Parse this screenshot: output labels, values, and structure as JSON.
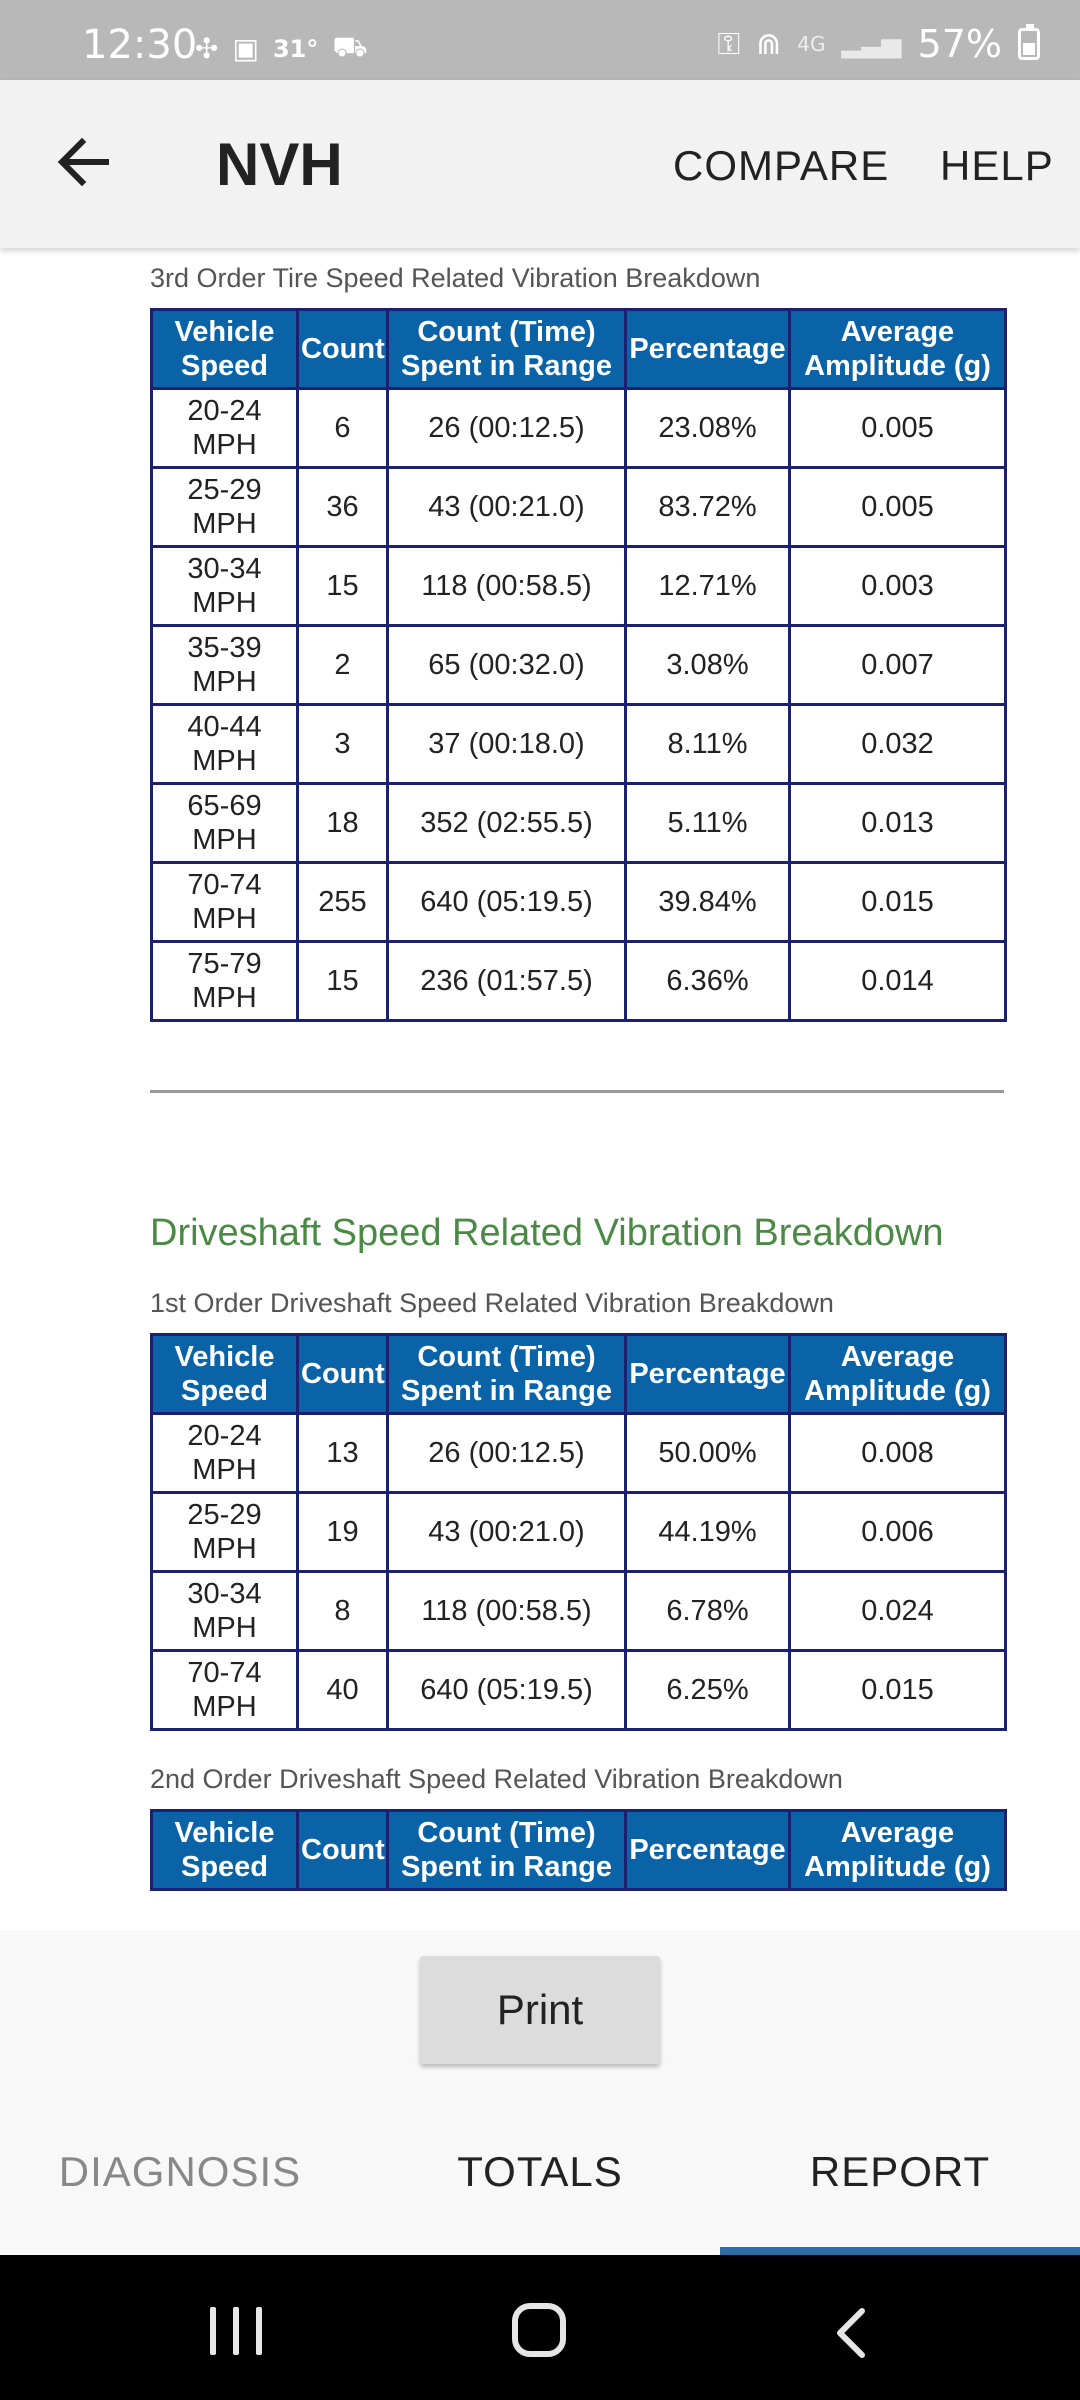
{
  "status_bar": {
    "time": "12:30",
    "temperature": "31°",
    "network": "4G",
    "battery": "57%"
  },
  "app_bar": {
    "title": "NVH",
    "compare_label": "COMPARE",
    "help_label": "HELP"
  },
  "columns": [
    "Vehicle Speed",
    "Count",
    "Count (Time) Spent in Range",
    "Percentage",
    "Average Amplitude (g)"
  ],
  "tire_3rd": {
    "caption": "3rd Order Tire Speed Related Vibration Breakdown",
    "rows": [
      [
        "20-24 MPH",
        "6",
        "26 (00:12.5)",
        "23.08%",
        "0.005"
      ],
      [
        "25-29 MPH",
        "36",
        "43 (00:21.0)",
        "83.72%",
        "0.005"
      ],
      [
        "30-34 MPH",
        "15",
        "118 (00:58.5)",
        "12.71%",
        "0.003"
      ],
      [
        "35-39 MPH",
        "2",
        "65 (00:32.0)",
        "3.08%",
        "0.007"
      ],
      [
        "40-44 MPH",
        "3",
        "37 (00:18.0)",
        "8.11%",
        "0.032"
      ],
      [
        "65-69 MPH",
        "18",
        "352 (02:55.5)",
        "5.11%",
        "0.013"
      ],
      [
        "70-74 MPH",
        "255",
        "640 (05:19.5)",
        "39.84%",
        "0.015"
      ],
      [
        "75-79 MPH",
        "15",
        "236 (01:57.5)",
        "6.36%",
        "0.014"
      ]
    ]
  },
  "driveshaft": {
    "heading": "Driveshaft Speed Related Vibration Breakdown",
    "first": {
      "caption": "1st Order Driveshaft Speed Related Vibration Breakdown",
      "rows": [
        [
          "20-24 MPH",
          "13",
          "26 (00:12.5)",
          "50.00%",
          "0.008"
        ],
        [
          "25-29 MPH",
          "19",
          "43 (00:21.0)",
          "44.19%",
          "0.006"
        ],
        [
          "30-34 MPH",
          "8",
          "118 (00:58.5)",
          "6.78%",
          "0.024"
        ],
        [
          "70-74 MPH",
          "40",
          "640 (05:19.5)",
          "6.25%",
          "0.015"
        ]
      ]
    },
    "second": {
      "caption": "2nd Order Driveshaft Speed Related Vibration Breakdown",
      "rows": []
    }
  },
  "print_label": "Print",
  "tabs": [
    {
      "label": "DIAGNOSIS"
    },
    {
      "label": "TOTALS"
    },
    {
      "label": "REPORT"
    }
  ],
  "active_tab": "REPORT",
  "colors": {
    "header_blue": "#0a63a6",
    "section_green": "#4a8a45",
    "tab_indicator": "#2e6da4"
  }
}
